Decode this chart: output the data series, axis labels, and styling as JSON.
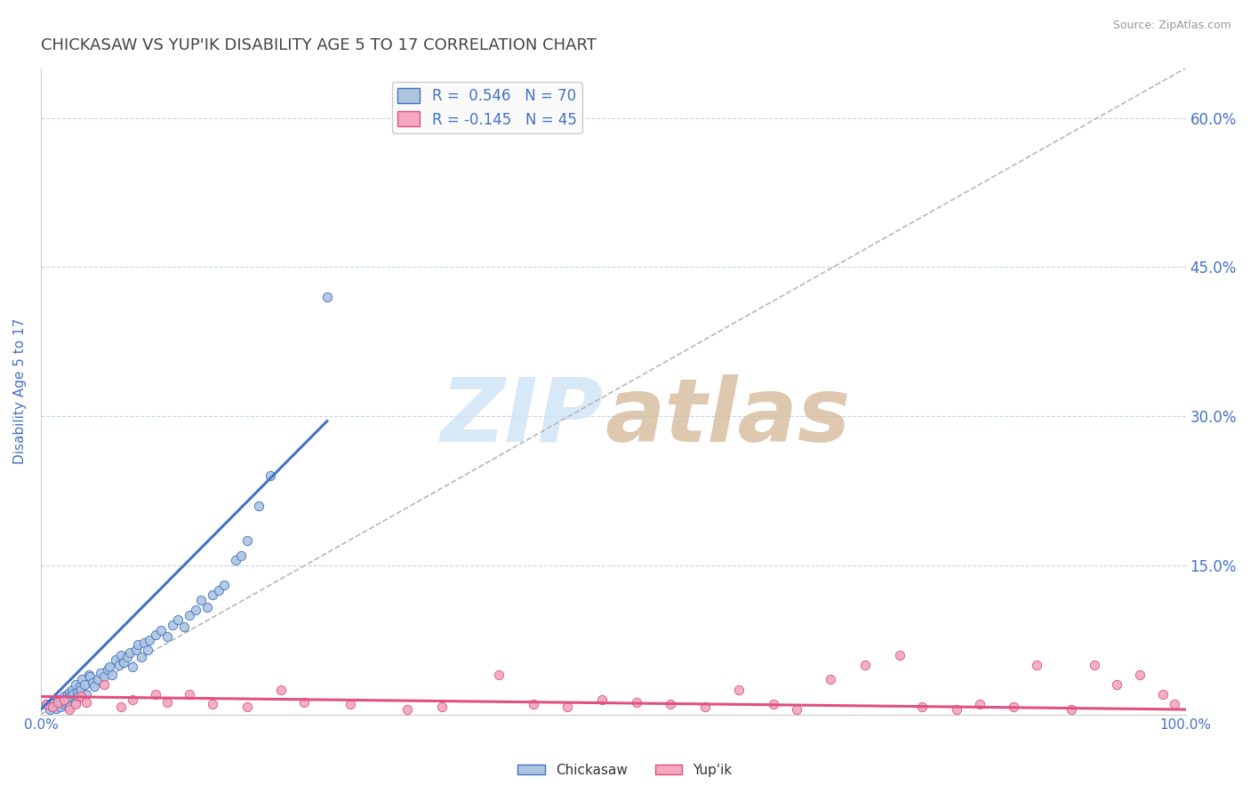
{
  "title": "CHICKASAW VS YUP'IK DISABILITY AGE 5 TO 17 CORRELATION CHART",
  "source": "Source: ZipAtlas.com",
  "ylabel": "Disability Age 5 to 17",
  "xlim": [
    0.0,
    1.0
  ],
  "ylim": [
    0.0,
    0.65
  ],
  "xtick_labels": [
    "0.0%",
    "",
    "",
    "",
    "100.0%"
  ],
  "ytick_labels": [
    "",
    "15.0%",
    "30.0%",
    "45.0%",
    "60.0%"
  ],
  "yticks": [
    0.0,
    0.15,
    0.3,
    0.45,
    0.6
  ],
  "r_chickasaw": 0.546,
  "n_chickasaw": 70,
  "r_yupik": -0.145,
  "n_yupik": 45,
  "chickasaw_color": "#adc6e0",
  "yupik_color": "#f2a8be",
  "chickasaw_line_color": "#4472c4",
  "yupik_line_color": "#e05080",
  "trend_line_color": "#b8b8b8",
  "grid_color": "#c5d5e8",
  "background_color": "#ffffff",
  "title_color": "#444444",
  "title_fontsize": 13,
  "tick_label_color": "#4472c4",
  "legend_r1": "R =  0.546   N = 70",
  "legend_r2": "R = -0.145   N = 45",
  "chickasaw_scatter_x": [
    0.005,
    0.008,
    0.01,
    0.012,
    0.013,
    0.015,
    0.016,
    0.017,
    0.018,
    0.02,
    0.02,
    0.022,
    0.023,
    0.024,
    0.025,
    0.025,
    0.026,
    0.027,
    0.028,
    0.03,
    0.03,
    0.032,
    0.033,
    0.034,
    0.035,
    0.036,
    0.038,
    0.04,
    0.042,
    0.043,
    0.045,
    0.047,
    0.05,
    0.052,
    0.055,
    0.058,
    0.06,
    0.062,
    0.065,
    0.068,
    0.07,
    0.072,
    0.075,
    0.078,
    0.08,
    0.083,
    0.085,
    0.088,
    0.09,
    0.093,
    0.095,
    0.1,
    0.105,
    0.11,
    0.115,
    0.12,
    0.125,
    0.13,
    0.135,
    0.14,
    0.145,
    0.15,
    0.155,
    0.16,
    0.17,
    0.175,
    0.18,
    0.19,
    0.2,
    0.25
  ],
  "chickasaw_scatter_y": [
    0.01,
    0.005,
    0.008,
    0.012,
    0.006,
    0.015,
    0.01,
    0.008,
    0.013,
    0.01,
    0.018,
    0.012,
    0.02,
    0.015,
    0.008,
    0.022,
    0.018,
    0.025,
    0.02,
    0.012,
    0.03,
    0.022,
    0.018,
    0.028,
    0.025,
    0.035,
    0.03,
    0.02,
    0.04,
    0.038,
    0.032,
    0.028,
    0.035,
    0.042,
    0.038,
    0.045,
    0.048,
    0.04,
    0.055,
    0.05,
    0.06,
    0.052,
    0.058,
    0.062,
    0.048,
    0.065,
    0.07,
    0.058,
    0.072,
    0.065,
    0.075,
    0.08,
    0.085,
    0.078,
    0.09,
    0.095,
    0.088,
    0.1,
    0.105,
    0.115,
    0.108,
    0.12,
    0.125,
    0.13,
    0.155,
    0.16,
    0.175,
    0.21,
    0.24,
    0.42
  ],
  "yupik_scatter_x": [
    0.005,
    0.01,
    0.015,
    0.02,
    0.025,
    0.03,
    0.035,
    0.04,
    0.055,
    0.07,
    0.08,
    0.1,
    0.11,
    0.13,
    0.15,
    0.18,
    0.21,
    0.23,
    0.27,
    0.32,
    0.35,
    0.4,
    0.43,
    0.46,
    0.49,
    0.52,
    0.55,
    0.58,
    0.61,
    0.64,
    0.66,
    0.69,
    0.72,
    0.75,
    0.77,
    0.8,
    0.82,
    0.85,
    0.87,
    0.9,
    0.92,
    0.94,
    0.96,
    0.98,
    0.99
  ],
  "yupik_scatter_y": [
    0.01,
    0.008,
    0.012,
    0.015,
    0.005,
    0.01,
    0.018,
    0.012,
    0.03,
    0.008,
    0.015,
    0.02,
    0.012,
    0.02,
    0.01,
    0.008,
    0.025,
    0.012,
    0.01,
    0.005,
    0.008,
    0.04,
    0.01,
    0.008,
    0.015,
    0.012,
    0.01,
    0.008,
    0.025,
    0.01,
    0.005,
    0.035,
    0.05,
    0.06,
    0.008,
    0.005,
    0.01,
    0.008,
    0.05,
    0.005,
    0.05,
    0.03,
    0.04,
    0.02,
    0.01
  ],
  "chickasaw_line_x": [
    0.0,
    0.25
  ],
  "chickasaw_line_y": [
    0.005,
    0.295
  ],
  "yupik_line_x": [
    0.0,
    1.0
  ],
  "yupik_line_y": [
    0.018,
    0.005
  ],
  "diag_line_x": [
    0.0,
    1.0
  ],
  "diag_line_y": [
    0.0,
    0.65
  ]
}
